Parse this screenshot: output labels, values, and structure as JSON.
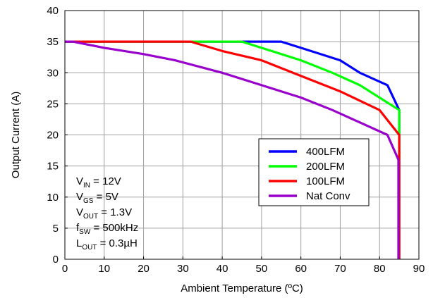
{
  "chart_data": {
    "type": "line",
    "xlabel": "Ambient Temperature (ºC)",
    "ylabel": "Output Current (A)",
    "xlim": [
      0,
      90
    ],
    "ylim": [
      0,
      40
    ],
    "xticks": [
      "0",
      "10",
      "20",
      "30",
      "40",
      "50",
      "60",
      "70",
      "80",
      "90"
    ],
    "yticks": [
      "0",
      "5",
      "10",
      "15",
      "20",
      "25",
      "30",
      "35",
      "40"
    ],
    "grid": true,
    "legend_position": "lower-right",
    "series": [
      {
        "name": "400LFM",
        "color": "#0000ff",
        "x": [
          0,
          55,
          60,
          70,
          75,
          82,
          85,
          85
        ],
        "y": [
          35,
          35,
          34,
          32,
          30,
          28,
          24,
          0
        ]
      },
      {
        "name": "200LFM",
        "color": "#00ff00",
        "x": [
          0,
          45,
          50,
          60,
          68,
          75,
          85,
          85
        ],
        "y": [
          35,
          35,
          34,
          32,
          30,
          28,
          24,
          0
        ]
      },
      {
        "name": "100LFM",
        "color": "#ff0000",
        "x": [
          0,
          32,
          40,
          50,
          60,
          70,
          80,
          85,
          85
        ],
        "y": [
          35,
          35,
          33.5,
          32,
          29.5,
          27,
          24,
          20,
          0
        ]
      },
      {
        "name": "Nat Conv",
        "color": "#9900cc",
        "x": [
          0,
          2,
          10,
          20,
          28,
          40,
          50,
          60,
          68,
          75,
          82,
          84.8,
          84.8
        ],
        "y": [
          35,
          35,
          34,
          33,
          32,
          30,
          28,
          26,
          24,
          22,
          20,
          16,
          0
        ]
      }
    ],
    "annotations": [
      {
        "main": "V",
        "sub": "IN",
        "rest": " = 12V"
      },
      {
        "main": "V",
        "sub": "GS",
        "rest": " = 5V"
      },
      {
        "main": "V",
        "sub": "OUT",
        "rest": " = 1.3V"
      },
      {
        "main": "f",
        "sub": "SW",
        "rest": " = 500kHz"
      },
      {
        "main": "L",
        "sub": "OUT",
        "rest": " = 0.3µH"
      }
    ]
  }
}
